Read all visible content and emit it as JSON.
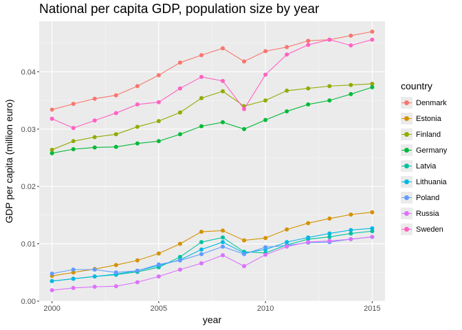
{
  "chart_data": {
    "type": "line",
    "title": "National per capita GDP, population size by year",
    "xlabel": "year",
    "ylabel": "GDP per capita (million euro)",
    "xlim": [
      1999.4,
      2015.6
    ],
    "ylim": [
      0.0,
      0.0488
    ],
    "xticks": [
      2000,
      2005,
      2010,
      2015
    ],
    "xtick_labels": [
      "2000",
      "2005",
      "2010",
      "2015"
    ],
    "yticks": [
      0.0,
      0.01,
      0.02,
      0.03,
      0.04
    ],
    "ytick_labels": [
      "0.00",
      "0.01",
      "0.02",
      "0.03",
      "0.04"
    ],
    "grid": true,
    "legend_title": "country",
    "legend_position": "right",
    "x": [
      2000,
      2001,
      2002,
      2003,
      2004,
      2005,
      2006,
      2007,
      2008,
      2009,
      2010,
      2011,
      2012,
      2013,
      2014,
      2015
    ],
    "series": [
      {
        "name": "Denmark",
        "color": "#F8766D",
        "values": [
          0.0334,
          0.0344,
          0.0353,
          0.0359,
          0.0375,
          0.0394,
          0.0416,
          0.0429,
          0.0441,
          0.0418,
          0.0436,
          0.0443,
          0.0454,
          0.0456,
          0.0463,
          0.047
        ]
      },
      {
        "name": "Estonia",
        "color": "#D39200",
        "values": [
          0.0044,
          0.005,
          0.0056,
          0.0063,
          0.0071,
          0.0083,
          0.01,
          0.0121,
          0.0123,
          0.0106,
          0.011,
          0.0125,
          0.0136,
          0.0144,
          0.0151,
          0.0155
        ]
      },
      {
        "name": "Finland",
        "color": "#93AA00",
        "values": [
          0.0264,
          0.0279,
          0.0286,
          0.0291,
          0.0304,
          0.0314,
          0.0329,
          0.0354,
          0.0366,
          0.034,
          0.035,
          0.0367,
          0.0371,
          0.0375,
          0.0377,
          0.0379
        ]
      },
      {
        "name": "Germany",
        "color": "#00BA38",
        "values": [
          0.0258,
          0.0265,
          0.0268,
          0.0269,
          0.0275,
          0.0279,
          0.0291,
          0.0305,
          0.0312,
          0.03,
          0.0316,
          0.0331,
          0.0343,
          0.035,
          0.0361,
          0.0373
        ]
      },
      {
        "name": "Latvia",
        "color": "#00C19F",
        "values": [
          0.0035,
          0.0039,
          0.0043,
          0.0046,
          0.0051,
          0.0059,
          0.0077,
          0.0103,
          0.0111,
          0.0086,
          0.0084,
          0.0098,
          0.0108,
          0.0112,
          0.0118,
          0.0122
        ]
      },
      {
        "name": "Lithuania",
        "color": "#00B9E3",
        "values": [
          0.0035,
          0.0039,
          0.0043,
          0.0047,
          0.0053,
          0.0062,
          0.0072,
          0.009,
          0.0103,
          0.0084,
          0.009,
          0.0103,
          0.0111,
          0.0118,
          0.0124,
          0.0127
        ]
      },
      {
        "name": "Poland",
        "color": "#619CFF",
        "values": [
          0.0048,
          0.0055,
          0.0055,
          0.005,
          0.0053,
          0.0064,
          0.0071,
          0.0082,
          0.0095,
          0.0082,
          0.0094,
          0.0097,
          0.0102,
          0.0103,
          0.0108,
          0.0112
        ]
      },
      {
        "name": "Russia",
        "color": "#DB72FB",
        "values": [
          0.0019,
          0.0023,
          0.0025,
          0.0026,
          0.0033,
          0.0043,
          0.0055,
          0.0066,
          0.008,
          0.0061,
          0.0081,
          0.0095,
          0.0103,
          0.0105,
          0.0108,
          0.0112
        ]
      },
      {
        "name": "Sweden",
        "color": "#FF61C3",
        "values": [
          0.0318,
          0.0302,
          0.0315,
          0.0328,
          0.0343,
          0.0347,
          0.0371,
          0.0391,
          0.0384,
          0.0335,
          0.0395,
          0.043,
          0.0447,
          0.0456,
          0.0446,
          0.0456
        ]
      }
    ]
  }
}
